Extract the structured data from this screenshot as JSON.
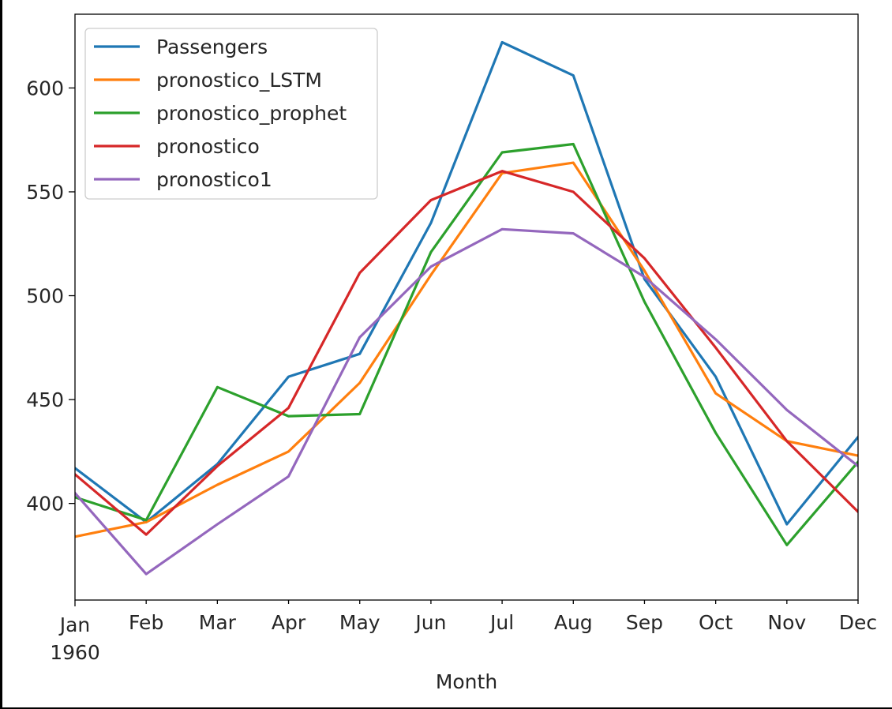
{
  "chart_data": {
    "type": "line",
    "title": "",
    "xlabel": "Month",
    "ylabel": "",
    "categories": [
      "Jan",
      "Feb",
      "Mar",
      "Apr",
      "May",
      "Jun",
      "Jul",
      "Aug",
      "Sep",
      "Oct",
      "Nov",
      "Dec"
    ],
    "x_tick_year_label": "1960",
    "y_ticks": [
      400,
      450,
      500,
      550,
      600
    ],
    "ylim": [
      353.5,
      635.5
    ],
    "grid": false,
    "legend_position": "upper-left",
    "series": [
      {
        "name": "Passengers",
        "color": "#1f77b4",
        "values": [
          417,
          391,
          419,
          461,
          472,
          535,
          622,
          606,
          508,
          461,
          390,
          432
        ]
      },
      {
        "name": "pronostico_LSTM",
        "color": "#ff7f0e",
        "values": [
          384,
          391,
          409,
          425,
          458,
          510,
          559,
          564,
          512,
          453,
          430,
          423
        ]
      },
      {
        "name": "pronostico_prophet",
        "color": "#2ca02c",
        "values": [
          403,
          392,
          456,
          442,
          443,
          521,
          569,
          573,
          497,
          434,
          380,
          420
        ]
      },
      {
        "name": "pronostico",
        "color": "#d62728",
        "values": [
          414,
          385,
          418,
          446,
          511,
          546,
          560,
          550,
          518,
          475,
          430,
          396
        ]
      },
      {
        "name": "pronostico1",
        "color": "#9467bd",
        "values": [
          405,
          366,
          390,
          413,
          480,
          514,
          532,
          530,
          509,
          479,
          445,
          418
        ]
      }
    ]
  }
}
